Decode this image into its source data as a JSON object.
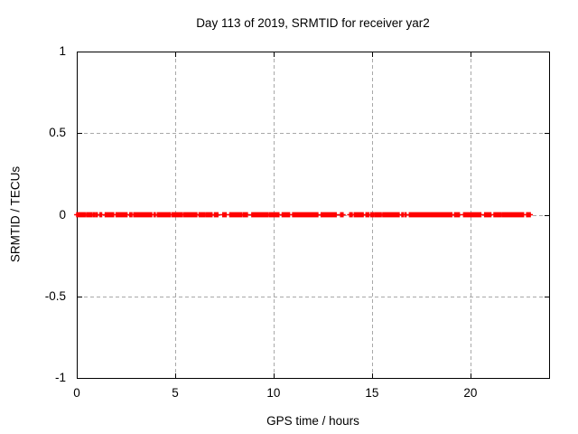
{
  "chart_data": {
    "type": "scatter",
    "title": "Day 113 of 2019, SRMTID for receiver yar2",
    "xlabel": "GPS time / hours",
    "ylabel": "SRMTID / TECUs",
    "xlim": [
      0,
      24
    ],
    "ylim": [
      -1,
      1
    ],
    "x_ticks": [
      0,
      5,
      10,
      15,
      20
    ],
    "x_tick_labels": [
      "0",
      "5",
      "10",
      "15",
      "20"
    ],
    "y_ticks": [
      1,
      0.5,
      0,
      -0.5,
      -1
    ],
    "y_tick_labels": [
      "1",
      "0.5",
      "0",
      "-0.5",
      "-1"
    ],
    "grid": true,
    "legend": "none",
    "marker": "plus",
    "point_step_hours": 0.05,
    "series": [
      {
        "name": "SRMTID",
        "y_value": 0,
        "x_segments": [
          [
            0.0,
            0.22
          ],
          [
            0.26,
            0.31
          ],
          [
            0.38,
            0.42
          ],
          [
            0.5,
            0.67
          ],
          [
            0.73,
            0.78
          ],
          [
            0.86,
            0.91
          ],
          [
            0.98,
            1.04
          ],
          [
            1.18,
            1.26
          ],
          [
            1.45,
            1.52
          ],
          [
            1.57,
            1.76
          ],
          [
            1.8,
            1.87
          ],
          [
            2.0,
            2.06
          ],
          [
            2.13,
            2.45
          ],
          [
            2.49,
            2.55
          ],
          [
            2.7,
            2.8
          ],
          [
            2.9,
            3.33
          ],
          [
            3.38,
            3.45
          ],
          [
            3.5,
            3.81
          ],
          [
            3.93,
            3.99
          ],
          [
            4.1,
            4.58
          ],
          [
            4.65,
            4.76
          ],
          [
            4.85,
            5.19
          ],
          [
            5.26,
            5.37
          ],
          [
            5.45,
            5.95
          ],
          [
            6.02,
            6.1
          ],
          [
            6.22,
            6.49
          ],
          [
            6.56,
            6.87
          ],
          [
            7.0,
            7.17
          ],
          [
            7.42,
            7.59
          ],
          [
            7.78,
            8.38
          ],
          [
            8.46,
            8.53
          ],
          [
            8.6,
            8.67
          ],
          [
            8.9,
            9.46
          ],
          [
            9.52,
            9.71
          ],
          [
            9.79,
            9.92
          ],
          [
            9.99,
            10.14
          ],
          [
            10.2,
            10.27
          ],
          [
            10.44,
            10.6
          ],
          [
            10.67,
            10.81
          ],
          [
            10.97,
            11.29
          ],
          [
            11.35,
            11.67
          ],
          [
            11.73,
            11.9
          ],
          [
            11.94,
            12.09
          ],
          [
            12.15,
            12.25
          ],
          [
            12.42,
            12.74
          ],
          [
            12.8,
            13.18
          ],
          [
            13.41,
            13.53
          ],
          [
            13.87,
            13.99
          ],
          [
            14.1,
            14.55
          ],
          [
            14.7,
            14.84
          ],
          [
            14.94,
            15.09
          ],
          [
            15.16,
            15.47
          ],
          [
            15.55,
            15.78
          ],
          [
            15.85,
            16.15
          ],
          [
            16.2,
            16.28
          ],
          [
            16.33,
            16.38
          ],
          [
            16.52,
            16.58
          ],
          [
            16.67,
            16.73
          ],
          [
            16.9,
            17.3
          ],
          [
            17.37,
            17.69
          ],
          [
            17.75,
            17.91
          ],
          [
            17.98,
            18.14
          ],
          [
            18.2,
            18.51
          ],
          [
            18.58,
            18.81
          ],
          [
            18.88,
            19.06
          ],
          [
            19.2,
            19.44
          ],
          [
            19.66,
            19.81
          ],
          [
            19.88,
            20.21
          ],
          [
            20.27,
            20.43
          ],
          [
            20.48,
            20.53
          ],
          [
            20.73,
            21.04
          ],
          [
            21.2,
            21.57
          ],
          [
            21.64,
            21.88
          ],
          [
            21.95,
            22.1
          ],
          [
            22.17,
            22.34
          ],
          [
            22.4,
            22.7
          ],
          [
            22.86,
            23.04
          ]
        ]
      }
    ],
    "colors": {
      "background": "#ffffff",
      "axis": "#000000",
      "grid": "#a8a8a8",
      "marker": "#ff0000",
      "text": "#000000"
    }
  }
}
